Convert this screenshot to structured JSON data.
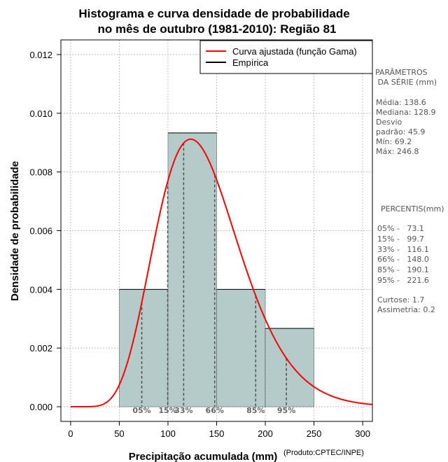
{
  "chart_data": {
    "type": "bar",
    "title_line1": "Histograma e curva densidade de probabilidade",
    "title_line2": "no mês de outubro (1981-2010): Região 81",
    "xlabel": "Precipitação acumulada (mm)",
    "ylabel": "Densidade de probabilidade",
    "credit": "(Produto:CPTEC/INPE)",
    "xlim": [
      -10,
      310
    ],
    "ylim": [
      -0.0005,
      0.0125
    ],
    "xticks": [
      0,
      50,
      100,
      150,
      200,
      250,
      300
    ],
    "yticks": [
      0.0,
      0.002,
      0.004,
      0.006,
      0.008,
      0.01,
      0.012
    ],
    "ytick_labels": [
      "0.000",
      "0.002",
      "0.004",
      "0.006",
      "0.008",
      "0.010",
      "0.012"
    ],
    "grid": true,
    "bins": [
      {
        "start": 50,
        "end": 100,
        "density": 0.004
      },
      {
        "start": 100,
        "end": 150,
        "density": 0.00933
      },
      {
        "start": 150,
        "end": 200,
        "density": 0.004
      },
      {
        "start": 200,
        "end": 250,
        "density": 0.00267
      }
    ],
    "gamma_curve": {
      "mean": 138.6,
      "sd": 45.9,
      "name": "Curva ajustada (função Gama)"
    },
    "legend": [
      {
        "label": "Curva ajustada (função Gama)",
        "color": "#ff0000"
      },
      {
        "label": "Empírica",
        "color": "#000000"
      }
    ],
    "percentile_lines": [
      {
        "label": "05%",
        "value": 73.1
      },
      {
        "label": "15%",
        "value": 99.7
      },
      {
        "label": "33%",
        "value": 116.1
      },
      {
        "label": "66%",
        "value": 148.0
      },
      {
        "label": "85%",
        "value": 190.1
      },
      {
        "label": "95%",
        "value": 221.6
      }
    ]
  },
  "side_panel": {
    "params_title_1": "PARÂMETROS",
    "params_title_2": " DA SÉRIE (mm)",
    "stats": [
      "Média:  138.6",
      "Mediana:  128.9",
      "Desvio",
      "padrão:  45.9",
      "Mín:  69.2",
      "Máx:  246.8"
    ],
    "percentis_title": "PERCENTIS(mm)",
    "percentis": [
      "05% -   73.1",
      "15% -   99.7",
      "33% -   116.1",
      "66% -   148.0",
      "85% -   190.1",
      "95% -   221.6"
    ],
    "shape": [
      "Curtose:  1.7",
      "Assimetria:  0.2"
    ]
  },
  "colors": {
    "bar_fill": "#b4cbca",
    "curve": "#ff0000",
    "grid": "#b0b0b0",
    "percentile_line": "#555555"
  }
}
